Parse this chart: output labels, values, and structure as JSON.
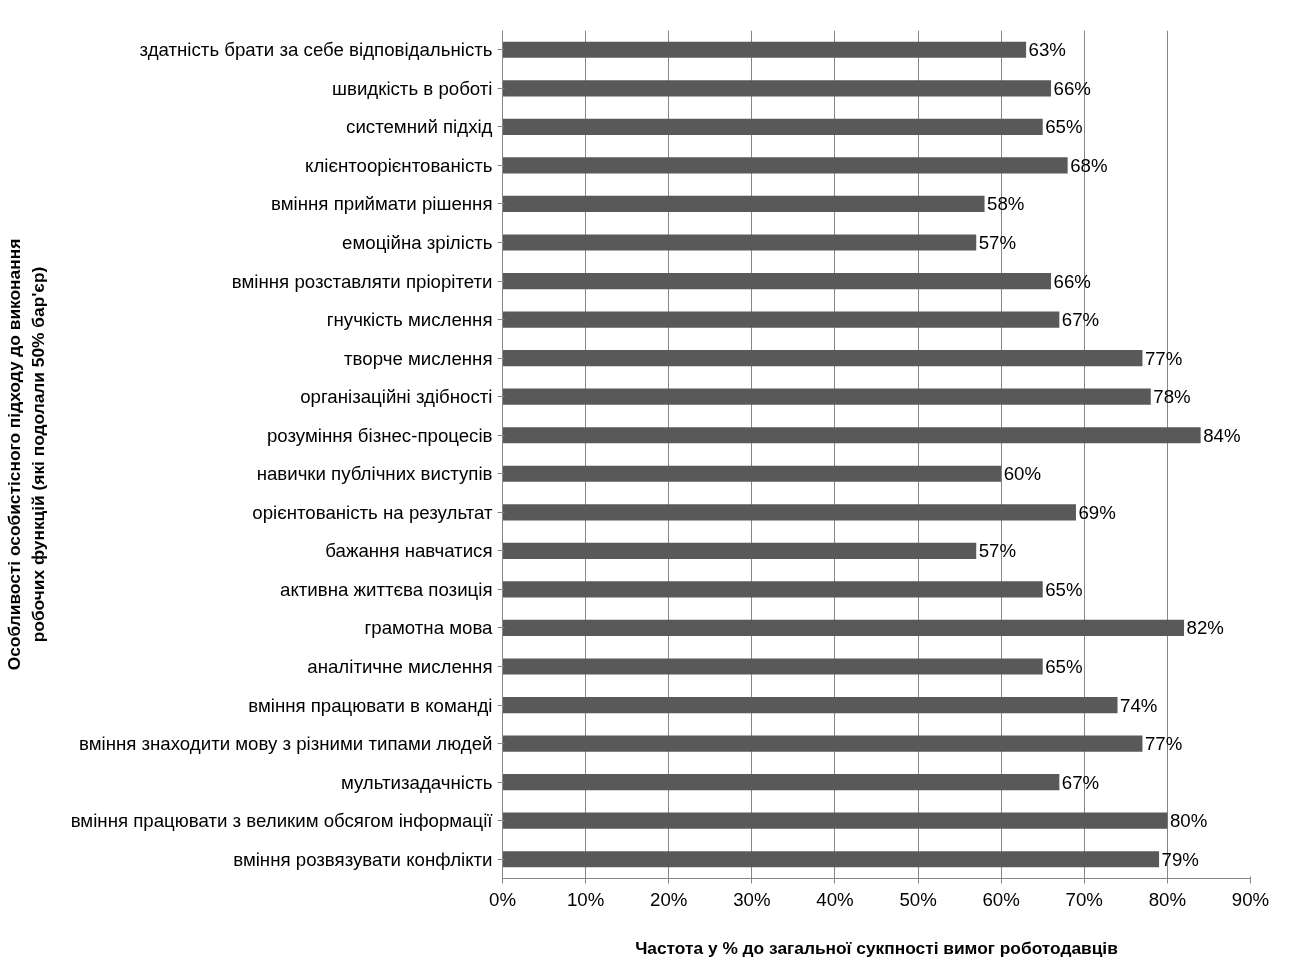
{
  "chart_data": {
    "type": "bar",
    "orientation": "horizontal",
    "xlabel": "Частота у % до загальної сукпності вимог роботодавців",
    "ylabel": "Особливості особистісного підходу до виконання робочих функцій (які подолали 50% бар'єр)",
    "categories": [
      "здатність брати за себе відповідальність",
      "швидкість в роботі",
      "системний підхід",
      "клієнтоорієнтованість",
      "вміння приймати рішення",
      "емоційна зрілість",
      "вміння розставляти пріорітети",
      "гнучкість мислення",
      "творче мислення",
      "організаційні здібності",
      "розуміння бізнес-процесів",
      "навички публічних виступів",
      "орієнтованість на результат",
      "бажання навчатися",
      "активна життєва позиція",
      "грамотна мова",
      "аналітичне мислення",
      "вміння працювати в команді",
      "вміння знаходити мову з різними типами людей",
      "мультизадачність",
      "вміння працювати з великим обсягом інформації",
      "вміння розвязувати конфлікти"
    ],
    "values": [
      63,
      66,
      65,
      68,
      58,
      57,
      66,
      67,
      77,
      78,
      84,
      60,
      69,
      57,
      65,
      82,
      65,
      74,
      77,
      67,
      80,
      79
    ],
    "value_labels": [
      "63%",
      "66%",
      "65%",
      "68%",
      "58%",
      "57%",
      "66%",
      "67%",
      "77%",
      "78%",
      "84%",
      "60%",
      "69%",
      "57%",
      "65%",
      "82%",
      "65%",
      "74%",
      "77%",
      "67%",
      "80%",
      "79%"
    ],
    "color": "#595959",
    "xlim": [
      0,
      90
    ],
    "xticks": [
      {
        "value": 0,
        "label": "0%"
      },
      {
        "value": 10,
        "label": "10%"
      },
      {
        "value": 20,
        "label": "20%"
      },
      {
        "value": 30,
        "label": "30%"
      },
      {
        "value": 40,
        "label": "40%"
      },
      {
        "value": 50,
        "label": "50%"
      },
      {
        "value": 60,
        "label": "60%"
      },
      {
        "value": 70,
        "label": "70%"
      },
      {
        "value": 80,
        "label": "80%"
      },
      {
        "value": 90,
        "label": "90%"
      }
    ],
    "grid": "x"
  }
}
